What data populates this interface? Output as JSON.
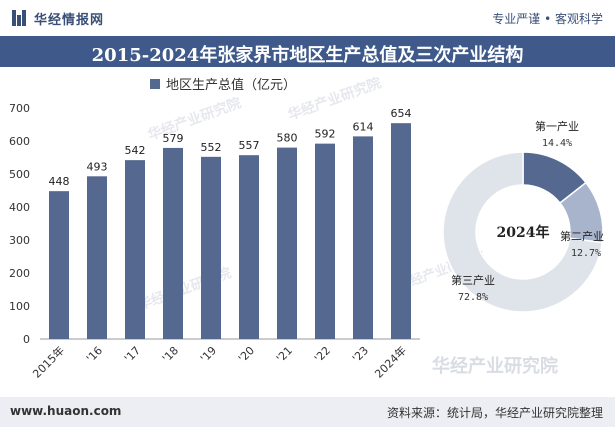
{
  "header": {
    "brand": "华经情报网",
    "slogan": "专业严谨 • 客观科学"
  },
  "title": "2015-2024年张家界市地区生产总值及三次产业结构",
  "footer": {
    "url": "www.huaon.com",
    "source": "资料来源：统计局，华经产业研究院整理"
  },
  "watermark": "华经产业研究院",
  "colors": {
    "bar": "#55688f",
    "title_bg": "#3f5a8a",
    "pie_primary": "#55688f",
    "pie_secondary": "#a7b4cc",
    "pie_tertiary": "#dfe3ea"
  },
  "chart_data": [
    {
      "type": "bar",
      "series": [
        {
          "name": "地区生产总值（亿元）",
          "values": [
            448,
            493,
            542,
            579,
            552,
            557,
            580,
            592,
            614,
            654
          ]
        }
      ],
      "categories": [
        "2015年",
        "'16",
        "'17",
        "'18",
        "'19",
        "'20",
        "'21",
        "'22",
        "'23",
        "2024年"
      ],
      "ylim": [
        0,
        700
      ],
      "yticks": [
        0,
        100,
        200,
        300,
        400,
        500,
        600,
        700
      ],
      "legend_position": "top"
    },
    {
      "type": "pie",
      "center_label": "2024年",
      "slices": [
        {
          "label": "第一产业",
          "value": 14.4,
          "text": "14.4%"
        },
        {
          "label": "第二产业",
          "value": 12.7,
          "text": "12.7%"
        },
        {
          "label": "第三产业",
          "value": 72.8,
          "text": "72.8%"
        }
      ]
    }
  ]
}
